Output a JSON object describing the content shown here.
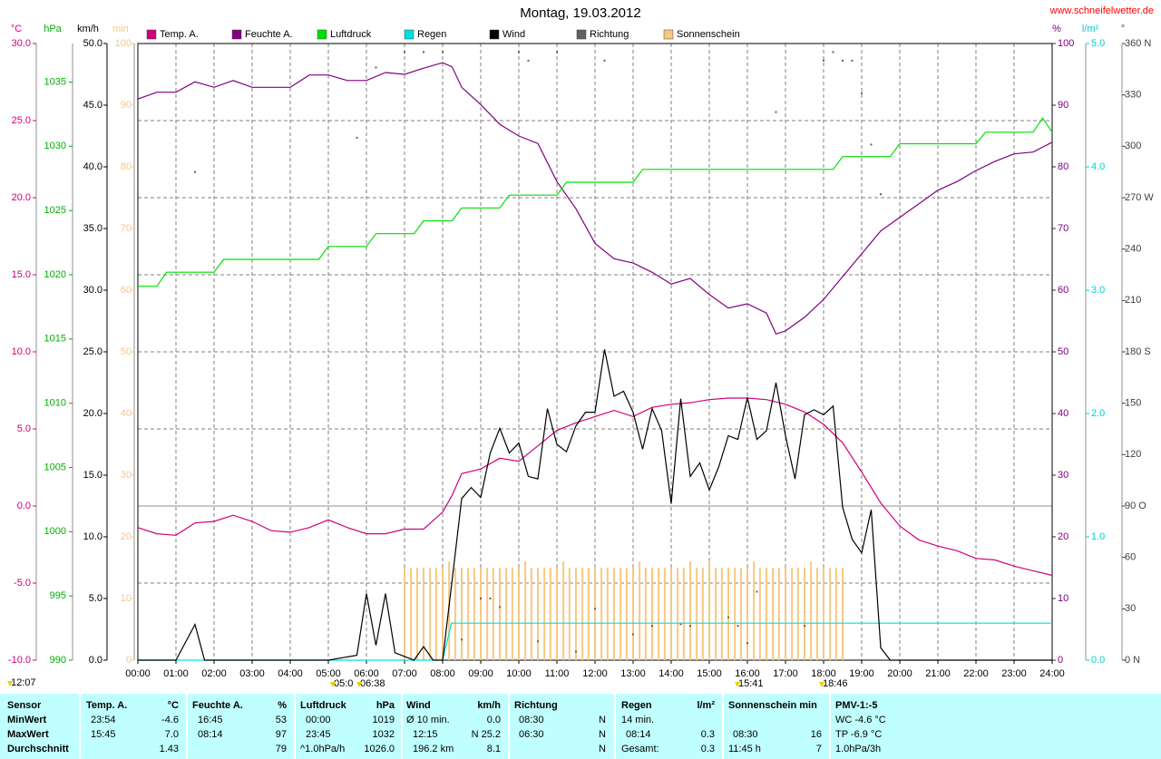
{
  "chart_data": {
    "type": "line",
    "title": "Montag, 19.03.2012",
    "source": "www.schneifelwetter.de",
    "grid": true,
    "grid_axis": 0,
    "xlim": [
      0,
      24
    ],
    "xticks": [
      {
        "value": 0,
        "label": "00:00"
      },
      {
        "value": 1,
        "label": "01:00"
      },
      {
        "value": 2,
        "label": "02:00"
      },
      {
        "value": 3,
        "label": "03:00"
      },
      {
        "value": 4,
        "label": "04:00"
      },
      {
        "value": 5,
        "label": "05:00"
      },
      {
        "value": 6,
        "label": "06:00"
      },
      {
        "value": 7,
        "label": "07:00"
      },
      {
        "value": 8,
        "label": "08:00"
      },
      {
        "value": 9,
        "label": "09:00"
      },
      {
        "value": 10,
        "label": "10:00"
      },
      {
        "value": 11,
        "label": "11:00"
      },
      {
        "value": 12,
        "label": "12:00"
      },
      {
        "value": 13,
        "label": "13:00"
      },
      {
        "value": 14,
        "label": "14:00"
      },
      {
        "value": 15,
        "label": "15:00"
      },
      {
        "value": 16,
        "label": "16:00"
      },
      {
        "value": 17,
        "label": "17:00"
      },
      {
        "value": 18,
        "label": "18:00"
      },
      {
        "value": 19,
        "label": "19:00"
      },
      {
        "value": 20,
        "label": "20:00"
      },
      {
        "value": 21,
        "label": "21:00"
      },
      {
        "value": 22,
        "label": "22:00"
      },
      {
        "value": 23,
        "label": "23:00"
      },
      {
        "value": 24,
        "label": "24:00"
      }
    ],
    "axes": [
      {
        "label": "°C",
        "color": "#d0007a",
        "ylim": [
          -10,
          30
        ],
        "yticks": [
          {
            "value": -10,
            "label": "-10.0"
          },
          {
            "value": -5,
            "label": "-5.0"
          },
          {
            "value": 0,
            "label": "0.0"
          },
          {
            "value": 5,
            "label": "5.0"
          },
          {
            "value": 10,
            "label": "10.0"
          },
          {
            "value": 15,
            "label": "15.0"
          },
          {
            "value": 20,
            "label": "20.0"
          },
          {
            "value": 25,
            "label": "25.0"
          },
          {
            "value": 30,
            "label": "30.0"
          }
        ]
      },
      {
        "label": "hPa",
        "color": "#00b000",
        "ylim": [
          990,
          1038
        ],
        "yticks": [
          990,
          995,
          1000,
          1005,
          1010,
          1015,
          1020,
          1025,
          1030,
          1035
        ]
      },
      {
        "label": "km/h",
        "color": "#000000",
        "ylim": [
          0,
          50
        ],
        "yticks": [
          {
            "value": 0,
            "label": "0.0"
          },
          {
            "value": 5,
            "label": "5.0"
          },
          {
            "value": 10,
            "label": "10.0"
          },
          {
            "value": 15,
            "label": "15.0"
          },
          {
            "value": 20,
            "label": "20.0"
          },
          {
            "value": 25,
            "label": "25.0"
          },
          {
            "value": 30,
            "label": "30.0"
          },
          {
            "value": 35,
            "label": "35.0"
          },
          {
            "value": 40,
            "label": "40.0"
          },
          {
            "value": 45,
            "label": "45.0"
          },
          {
            "value": 50,
            "label": "50.0"
          }
        ]
      },
      {
        "label": "min",
        "color": "#f0c890",
        "ylim": [
          0,
          100
        ],
        "yticks": [
          0,
          10,
          20,
          30,
          40,
          50,
          60,
          70,
          80,
          90,
          100
        ]
      },
      {
        "label": "%",
        "color": "#800080",
        "ylim": [
          0,
          100
        ],
        "yticks": [
          0,
          10,
          20,
          30,
          40,
          50,
          60,
          70,
          80,
          90,
          100
        ]
      },
      {
        "label": "l/m²",
        "color": "#00d0d0",
        "ylim": [
          0,
          5
        ],
        "yticks": [
          {
            "value": 0,
            "label": "0.0"
          },
          {
            "value": 1,
            "label": "1.0"
          },
          {
            "value": 2,
            "label": "2.0"
          },
          {
            "value": 3,
            "label": "3.0"
          },
          {
            "value": 4,
            "label": "4.0"
          },
          {
            "value": 5,
            "label": "5.0"
          }
        ]
      },
      {
        "label": "°",
        "color": "#404040",
        "ylim": [
          0,
          360
        ],
        "yticks": [
          {
            "value": 0,
            "label": "0 N"
          },
          30,
          60,
          {
            "value": 90,
            "label": "90 O"
          },
          120,
          150,
          {
            "value": 180,
            "label": "180 S"
          },
          210,
          240,
          {
            "value": 270,
            "label": "270 W"
          },
          300,
          330,
          {
            "value": 360,
            "label": "360 N"
          }
        ]
      }
    ],
    "series": [
      {
        "name": "Temp. A.",
        "color": "#d0007a",
        "axis": 0,
        "mark": "line",
        "x": [
          0,
          0.5,
          1,
          1.5,
          2,
          2.5,
          3,
          3.5,
          4,
          4.5,
          5,
          5.5,
          6,
          6.5,
          7,
          7.5,
          8,
          8.25,
          8.5,
          9,
          9.5,
          10,
          10.5,
          11,
          11.5,
          12,
          12.5,
          13,
          13.5,
          14,
          14.5,
          15,
          15.5,
          16,
          16.5,
          17,
          17.5,
          18,
          18.5,
          19,
          19.5,
          20,
          20.5,
          21,
          21.5,
          22,
          22.5,
          23,
          23.5,
          24
        ],
        "values": [
          -1.4,
          -1.8,
          -1.9,
          -1.1,
          -1.0,
          -0.6,
          -1.0,
          -1.6,
          -1.7,
          -1.4,
          -0.9,
          -1.4,
          -1.8,
          -1.8,
          -1.5,
          -1.5,
          -0.4,
          0.7,
          2.1,
          2.4,
          3.1,
          2.9,
          3.9,
          4.9,
          5.4,
          5.8,
          6.2,
          5.8,
          6.4,
          6.6,
          6.7,
          6.9,
          7.0,
          7.0,
          6.9,
          6.6,
          6.1,
          5.3,
          4.1,
          2.2,
          0.2,
          -1.3,
          -2.2,
          -2.6,
          -2.9,
          -3.4,
          -3.5,
          -3.9,
          -4.2,
          -4.5
        ]
      },
      {
        "name": "Feuchte A.",
        "color": "#800080",
        "axis": 4,
        "mark": "line",
        "x": [
          0,
          0.5,
          1,
          1.5,
          2,
          2.5,
          3,
          3.5,
          4,
          4.5,
          5,
          5.5,
          6,
          6.5,
          7,
          7.5,
          8,
          8.25,
          8.5,
          9,
          9.5,
          10,
          10.5,
          11,
          11.5,
          12,
          12.5,
          13,
          13.5,
          14,
          14.5,
          15,
          15.5,
          16,
          16.5,
          16.75,
          17,
          17.5,
          18,
          18.5,
          19,
          19.5,
          20,
          20.5,
          21,
          21.5,
          22,
          22.5,
          23,
          23.5,
          24
        ],
        "values": [
          91.0,
          92.1,
          92.1,
          93.8,
          92.9,
          94.0,
          92.9,
          92.9,
          92.9,
          94.9,
          94.9,
          94.0,
          94.0,
          95.3,
          95.0,
          96.0,
          96.9,
          96.2,
          92.9,
          90.1,
          86.9,
          85.0,
          83.8,
          77.6,
          73.2,
          67.6,
          65.1,
          64.4,
          62.9,
          61.0,
          61.9,
          59.3,
          57.1,
          57.8,
          56.3,
          52.9,
          53.4,
          55.6,
          58.5,
          62.2,
          65.9,
          69.6,
          71.8,
          74.0,
          76.2,
          77.6,
          79.4,
          80.9,
          82.1,
          82.4,
          84.0
        ]
      },
      {
        "name": "Luftdruck",
        "color": "#00e000",
        "axis": 1,
        "mark": "line",
        "x": [
          0,
          0.5,
          0.75,
          2,
          2.25,
          4.75,
          5,
          6,
          6.25,
          7.25,
          7.5,
          8.25,
          8.5,
          9.5,
          9.75,
          11,
          11.25,
          13,
          13.25,
          18.25,
          18.5,
          19.75,
          20,
          22,
          22.25,
          23.5,
          23.75,
          24
        ],
        "values": [
          1019.1,
          1019.1,
          1020.2,
          1020.2,
          1021.2,
          1021.2,
          1022.2,
          1022.2,
          1023.2,
          1023.2,
          1024.2,
          1024.2,
          1025.2,
          1025.2,
          1026.2,
          1026.2,
          1027.2,
          1027.2,
          1028.2,
          1028.2,
          1029.2,
          1029.2,
          1030.2,
          1030.2,
          1031.1,
          1031.1,
          1032.2,
          1031.1
        ]
      },
      {
        "name": "Regen",
        "color": "#00e0e0",
        "axis": 5,
        "mark": "line",
        "x": [
          0,
          8,
          8.23,
          24
        ],
        "values": [
          0,
          0,
          0.3,
          0.3
        ]
      },
      {
        "name": "Wind",
        "color": "#000000",
        "axis": 2,
        "mark": "line",
        "x": [
          0,
          1,
          1.5,
          1.75,
          5,
          5.75,
          6,
          6.25,
          6.5,
          6.75,
          7.25,
          7.5,
          7.75,
          8,
          8.25,
          8.5,
          8.75,
          9,
          9.25,
          9.5,
          9.75,
          10,
          10.25,
          10.5,
          10.75,
          11,
          11.25,
          11.5,
          11.75,
          12,
          12.25,
          12.5,
          12.75,
          13,
          13.25,
          13.5,
          13.75,
          14,
          14.25,
          14.5,
          14.75,
          15,
          15.25,
          15.5,
          15.75,
          16,
          16.25,
          16.5,
          16.75,
          17,
          17.25,
          17.5,
          17.75,
          18,
          18.25,
          18.5,
          18.75,
          19,
          19.25,
          19.5,
          19.75,
          24
        ],
        "values": [
          0,
          0,
          2.9,
          0,
          0,
          0.4,
          5.4,
          1.2,
          5.4,
          0.6,
          0,
          1.1,
          0,
          0,
          6.5,
          13.1,
          14.0,
          13.2,
          16.8,
          18.8,
          16.8,
          17.6,
          14.9,
          14.7,
          20.4,
          17.5,
          16.9,
          19.0,
          20.1,
          20.1,
          25.2,
          21.4,
          21.8,
          20.1,
          17.1,
          20.4,
          18.6,
          12.7,
          21.2,
          14.9,
          16.0,
          13.8,
          15.7,
          18.2,
          17.9,
          21.3,
          17.9,
          18.6,
          22.5,
          18.2,
          14.7,
          19.9,
          20.3,
          19.9,
          20.6,
          12.4,
          9.8,
          8.7,
          12.2,
          1.0,
          0,
          0
        ]
      },
      {
        "name": "Richtung",
        "color": "#606060",
        "axis": 6,
        "mark": "dot",
        "x": [
          1.5,
          5.75,
          6.25,
          7,
          7.5,
          8,
          8.5,
          9,
          9.25,
          9.5,
          10,
          10.25,
          10.5,
          11,
          11.5,
          12,
          12.25,
          13,
          13.5,
          14.25,
          14.5,
          15.5,
          15.75,
          16,
          16.25,
          16.75,
          17.5,
          18,
          18.25,
          18.5,
          18.75,
          19,
          19.25,
          19.5
        ],
        "values": [
          285,
          305,
          346,
          355,
          355,
          355,
          12,
          36,
          36,
          31,
          355,
          350,
          11,
          355,
          5,
          30,
          350,
          15,
          20,
          21,
          20,
          25,
          20,
          10,
          40,
          320,
          20,
          350,
          355,
          350,
          350,
          331,
          301,
          272
        ]
      },
      {
        "name": "Sonnenschein",
        "color": "#f8c880",
        "axis": 3,
        "mark": "bar",
        "x": [
          7,
          7.17,
          7.33,
          7.5,
          7.67,
          7.83,
          8,
          8.17,
          8.33,
          8.5,
          8.67,
          8.83,
          9,
          9.17,
          9.33,
          9.5,
          9.67,
          9.83,
          10,
          10.17,
          10.33,
          10.5,
          10.67,
          10.83,
          11,
          11.17,
          11.33,
          11.5,
          11.67,
          11.83,
          12,
          12.17,
          12.33,
          12.5,
          12.67,
          12.83,
          13,
          13.17,
          13.33,
          13.5,
          13.67,
          13.83,
          14,
          14.17,
          14.33,
          14.5,
          14.67,
          14.83,
          15,
          15.17,
          15.33,
          15.5,
          15.67,
          15.83,
          16,
          16.17,
          16.33,
          16.5,
          16.67,
          16.83,
          17,
          17.17,
          17.33,
          17.5,
          17.67,
          17.83,
          18,
          18.17,
          18.33,
          18.5
        ],
        "values": [
          15,
          15,
          15,
          15,
          15,
          15,
          15,
          16,
          15,
          15,
          15,
          15,
          15,
          15,
          15,
          15,
          15,
          15,
          15,
          16,
          15,
          15,
          15,
          15,
          15,
          16,
          15,
          15,
          15,
          15,
          15,
          15,
          15,
          15,
          15,
          15,
          15,
          16,
          15,
          15,
          15,
          15,
          15,
          15,
          15,
          16,
          15,
          15,
          16,
          15,
          15,
          15,
          15,
          15,
          15,
          16,
          15,
          15,
          15,
          15,
          15,
          15,
          15,
          15,
          16,
          15,
          15,
          15,
          15,
          15
        ]
      }
    ],
    "annotations": [
      "12:07",
      "05:0",
      "06:38",
      "15:41",
      "18:46"
    ]
  },
  "table": {
    "rows": [
      [
        "Sensor",
        "Temp. A.",
        "°C",
        "Feuchte A.",
        "%",
        "Luftdruck",
        "hPa",
        "Wind",
        "km/h",
        "Richtung",
        "Regen",
        "l/m²",
        "Sonnenschein min",
        "PMV-1:-5"
      ],
      [
        "MinWert",
        "23:54",
        "-4.6",
        "16:45",
        "53",
        "00:00",
        "1019",
        "Ø 10 min.",
        "0.0",
        "08:30",
        "N",
        "14 min.",
        "WC -4.6 °C"
      ],
      [
        "MaxWert",
        "15:45",
        "7.0",
        "08:14",
        "97",
        "23:45",
        "1032",
        "12:15",
        "N 25.2",
        "06:30",
        "N",
        "08:14",
        "0.3",
        "08:30",
        "16",
        "TP -6.9 °C"
      ],
      [
        "Durchschnitt",
        "1.43",
        "79",
        "^1.0hPa/h",
        "1026.0",
        "196.2 km",
        "8.1",
        "N",
        "Gesamt:",
        "0.3",
        "11:45 h",
        "7",
        "1.0hPa/3h"
      ]
    ]
  }
}
